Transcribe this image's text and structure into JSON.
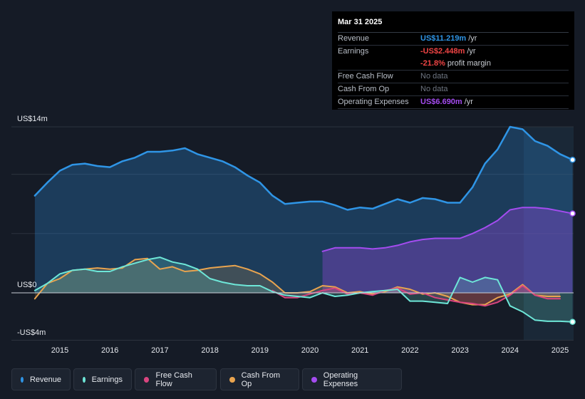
{
  "colors": {
    "revenue": "#2f95e6",
    "earnings": "#6ee7d8",
    "fcf": "#d9457f",
    "cfo": "#e9a44f",
    "opex": "#a44cf0",
    "negative_value": "#ef4444",
    "opex_value": "#a44cf0"
  },
  "tooltip": {
    "date": "Mar 31 2025",
    "rows": [
      {
        "label": "Revenue",
        "value": "US$11.219m",
        "unit": "/yr"
      },
      {
        "label": "Earnings",
        "value": "-US$2.448m",
        "unit": "/yr"
      },
      {
        "label": "",
        "value": "-21.8%",
        "unit": "profit margin"
      },
      {
        "label": "Free Cash Flow",
        "value": "No data",
        "unit": ""
      },
      {
        "label": "Cash From Op",
        "value": "No data",
        "unit": ""
      },
      {
        "label": "Operating Expenses",
        "value": "US$6.690m",
        "unit": "/yr"
      }
    ]
  },
  "legend": [
    {
      "label": "Revenue"
    },
    {
      "label": "Earnings"
    },
    {
      "label": "Free Cash Flow"
    },
    {
      "label": "Cash From Op"
    },
    {
      "label": "Operating Expenses"
    }
  ],
  "chart_data": {
    "type": "line",
    "title": "",
    "xlabel": "",
    "ylabel": "",
    "ylim": [
      -4,
      14
    ],
    "y_tick_labels": [
      "US$14m",
      "US$0",
      "-US$4m"
    ],
    "x_tick_labels": [
      "2015",
      "2016",
      "2017",
      "2018",
      "2019",
      "2020",
      "2021",
      "2022",
      "2023",
      "2024",
      "2025"
    ],
    "series": [
      {
        "name": "Revenue",
        "unit": "US$m",
        "x": [
          2014.5,
          2014.75,
          2015.0,
          2015.25,
          2015.5,
          2015.75,
          2016.0,
          2016.25,
          2016.5,
          2016.75,
          2017.0,
          2017.25,
          2017.5,
          2017.75,
          2018.0,
          2018.25,
          2018.5,
          2018.75,
          2019.0,
          2019.25,
          2019.5,
          2019.75,
          2020.0,
          2020.25,
          2020.5,
          2020.75,
          2021.0,
          2021.25,
          2021.5,
          2021.75,
          2022.0,
          2022.25,
          2022.5,
          2022.75,
          2023.0,
          2023.25,
          2023.5,
          2023.75,
          2024.0,
          2024.25,
          2024.5,
          2024.75,
          2025.0,
          2025.25
        ],
        "y": [
          8.2,
          9.3,
          10.3,
          10.8,
          10.9,
          10.7,
          10.6,
          11.1,
          11.4,
          11.9,
          11.9,
          12.0,
          12.2,
          11.7,
          11.4,
          11.1,
          10.6,
          9.9,
          9.3,
          8.2,
          7.5,
          7.6,
          7.7,
          7.7,
          7.4,
          7.0,
          7.2,
          7.1,
          7.5,
          7.9,
          7.6,
          8.0,
          7.9,
          7.6,
          7.6,
          8.9,
          10.9,
          12.1,
          14.0,
          13.8,
          12.8,
          12.4,
          11.7,
          11.22
        ]
      },
      {
        "name": "Earnings",
        "unit": "US$m",
        "x": [
          2014.5,
          2014.75,
          2015.0,
          2015.25,
          2015.5,
          2015.75,
          2016.0,
          2016.25,
          2016.5,
          2016.75,
          2017.0,
          2017.25,
          2017.5,
          2017.75,
          2018.0,
          2018.25,
          2018.5,
          2018.75,
          2019.0,
          2019.25,
          2019.5,
          2019.75,
          2020.0,
          2020.25,
          2020.5,
          2020.75,
          2021.0,
          2021.25,
          2021.5,
          2021.75,
          2022.0,
          2022.25,
          2022.5,
          2022.75,
          2023.0,
          2023.25,
          2023.5,
          2023.75,
          2024.0,
          2024.25,
          2024.5,
          2024.75,
          2025.0,
          2025.25
        ],
        "y": [
          0.2,
          0.8,
          1.6,
          1.9,
          2.0,
          1.8,
          1.8,
          2.2,
          2.5,
          2.8,
          3.0,
          2.6,
          2.4,
          2.0,
          1.2,
          0.9,
          0.7,
          0.6,
          0.6,
          0.1,
          -0.2,
          -0.3,
          -0.4,
          0.0,
          -0.3,
          -0.2,
          0.0,
          0.1,
          0.2,
          0.3,
          -0.7,
          -0.7,
          -0.8,
          -0.9,
          1.3,
          0.9,
          1.3,
          1.1,
          -1.1,
          -1.6,
          -2.3,
          -2.4,
          -2.4,
          -2.448
        ]
      },
      {
        "name": "Free Cash Flow",
        "unit": "US$m",
        "x": [
          2019.25,
          2019.5,
          2019.75,
          2020.0,
          2020.25,
          2020.5,
          2020.75,
          2021.0,
          2021.25,
          2021.5,
          2021.75,
          2022.0,
          2022.25,
          2022.5,
          2022.75,
          2023.0,
          2023.25,
          2023.5,
          2023.75,
          2024.0,
          2024.25,
          2024.5,
          2024.75,
          2025.0
        ],
        "y": [
          0.2,
          -0.4,
          -0.4,
          -0.1,
          0.2,
          0.4,
          -0.1,
          0.0,
          -0.2,
          0.2,
          0.4,
          -0.1,
          0.0,
          -0.4,
          -0.6,
          -0.8,
          -0.9,
          -1.1,
          -0.8,
          -0.2,
          0.6,
          -0.2,
          -0.5,
          -0.5
        ]
      },
      {
        "name": "Cash From Op",
        "unit": "US$m",
        "x": [
          2014.5,
          2014.75,
          2015.0,
          2015.25,
          2015.5,
          2015.75,
          2016.0,
          2016.25,
          2016.5,
          2016.75,
          2017.0,
          2017.25,
          2017.5,
          2017.75,
          2018.0,
          2018.25,
          2018.5,
          2018.75,
          2019.0,
          2019.25,
          2019.5,
          2019.75,
          2020.0,
          2020.25,
          2020.5,
          2020.75,
          2021.0,
          2021.25,
          2021.5,
          2021.75,
          2022.0,
          2022.25,
          2022.5,
          2022.75,
          2023.0,
          2023.25,
          2023.5,
          2023.75,
          2024.0,
          2024.25,
          2024.5,
          2024.75,
          2025.0
        ],
        "y": [
          -0.5,
          0.8,
          1.2,
          1.9,
          2.0,
          2.1,
          2.0,
          2.1,
          2.8,
          2.9,
          2.0,
          2.2,
          1.8,
          1.9,
          2.1,
          2.2,
          2.3,
          2.0,
          1.6,
          0.9,
          0.0,
          0.0,
          0.1,
          0.6,
          0.5,
          0.0,
          0.1,
          -0.1,
          0.1,
          0.5,
          0.3,
          -0.1,
          0.0,
          -0.3,
          -0.8,
          -1.0,
          -1.0,
          -0.4,
          -0.1,
          0.7,
          -0.2,
          -0.3,
          -0.3
        ]
      },
      {
        "name": "Operating Expenses",
        "unit": "US$m",
        "x": [
          2020.25,
          2020.5,
          2020.75,
          2021.0,
          2021.25,
          2021.5,
          2021.75,
          2022.0,
          2022.25,
          2022.5,
          2022.75,
          2023.0,
          2023.25,
          2023.5,
          2023.75,
          2024.0,
          2024.25,
          2024.5,
          2024.75,
          2025.0,
          2025.25
        ],
        "y": [
          3.5,
          3.8,
          3.8,
          3.8,
          3.7,
          3.8,
          4.0,
          4.3,
          4.5,
          4.6,
          4.6,
          4.6,
          5.0,
          5.5,
          6.1,
          7.0,
          7.2,
          7.2,
          7.1,
          6.9,
          6.69
        ]
      }
    ]
  }
}
